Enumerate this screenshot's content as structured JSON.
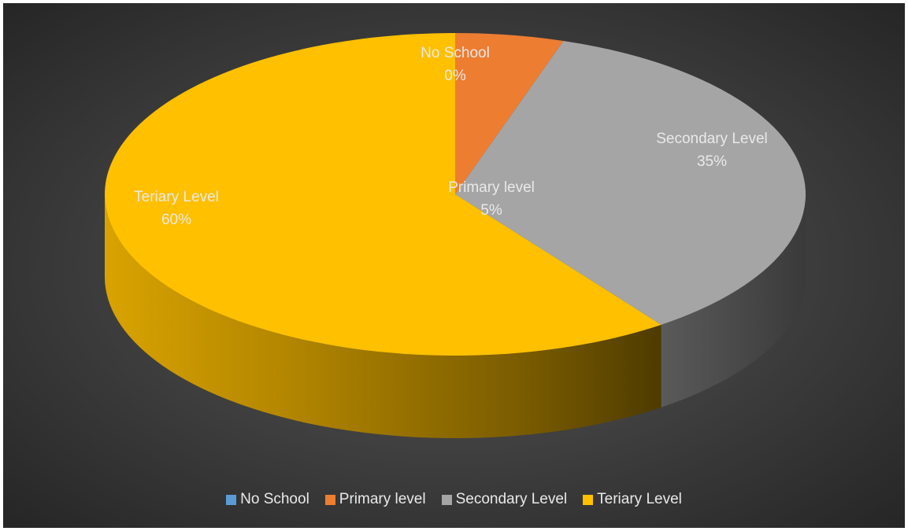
{
  "chart_data": {
    "type": "pie",
    "variant": "3d",
    "title": "",
    "slices": [
      {
        "label": "No School",
        "value": 0,
        "display": "0%",
        "color": "#5b9bd5"
      },
      {
        "label": "Primary level",
        "value": 5,
        "display": "5%",
        "color": "#ed7d31"
      },
      {
        "label": "Secondary Level",
        "value": 35,
        "display": "35%",
        "color": "#a5a5a5"
      },
      {
        "label": "Teriary Level",
        "value": 60,
        "display": "60%",
        "color": "#ffc000"
      }
    ],
    "legend_position": "bottom",
    "background": "dark-gray-radial"
  }
}
